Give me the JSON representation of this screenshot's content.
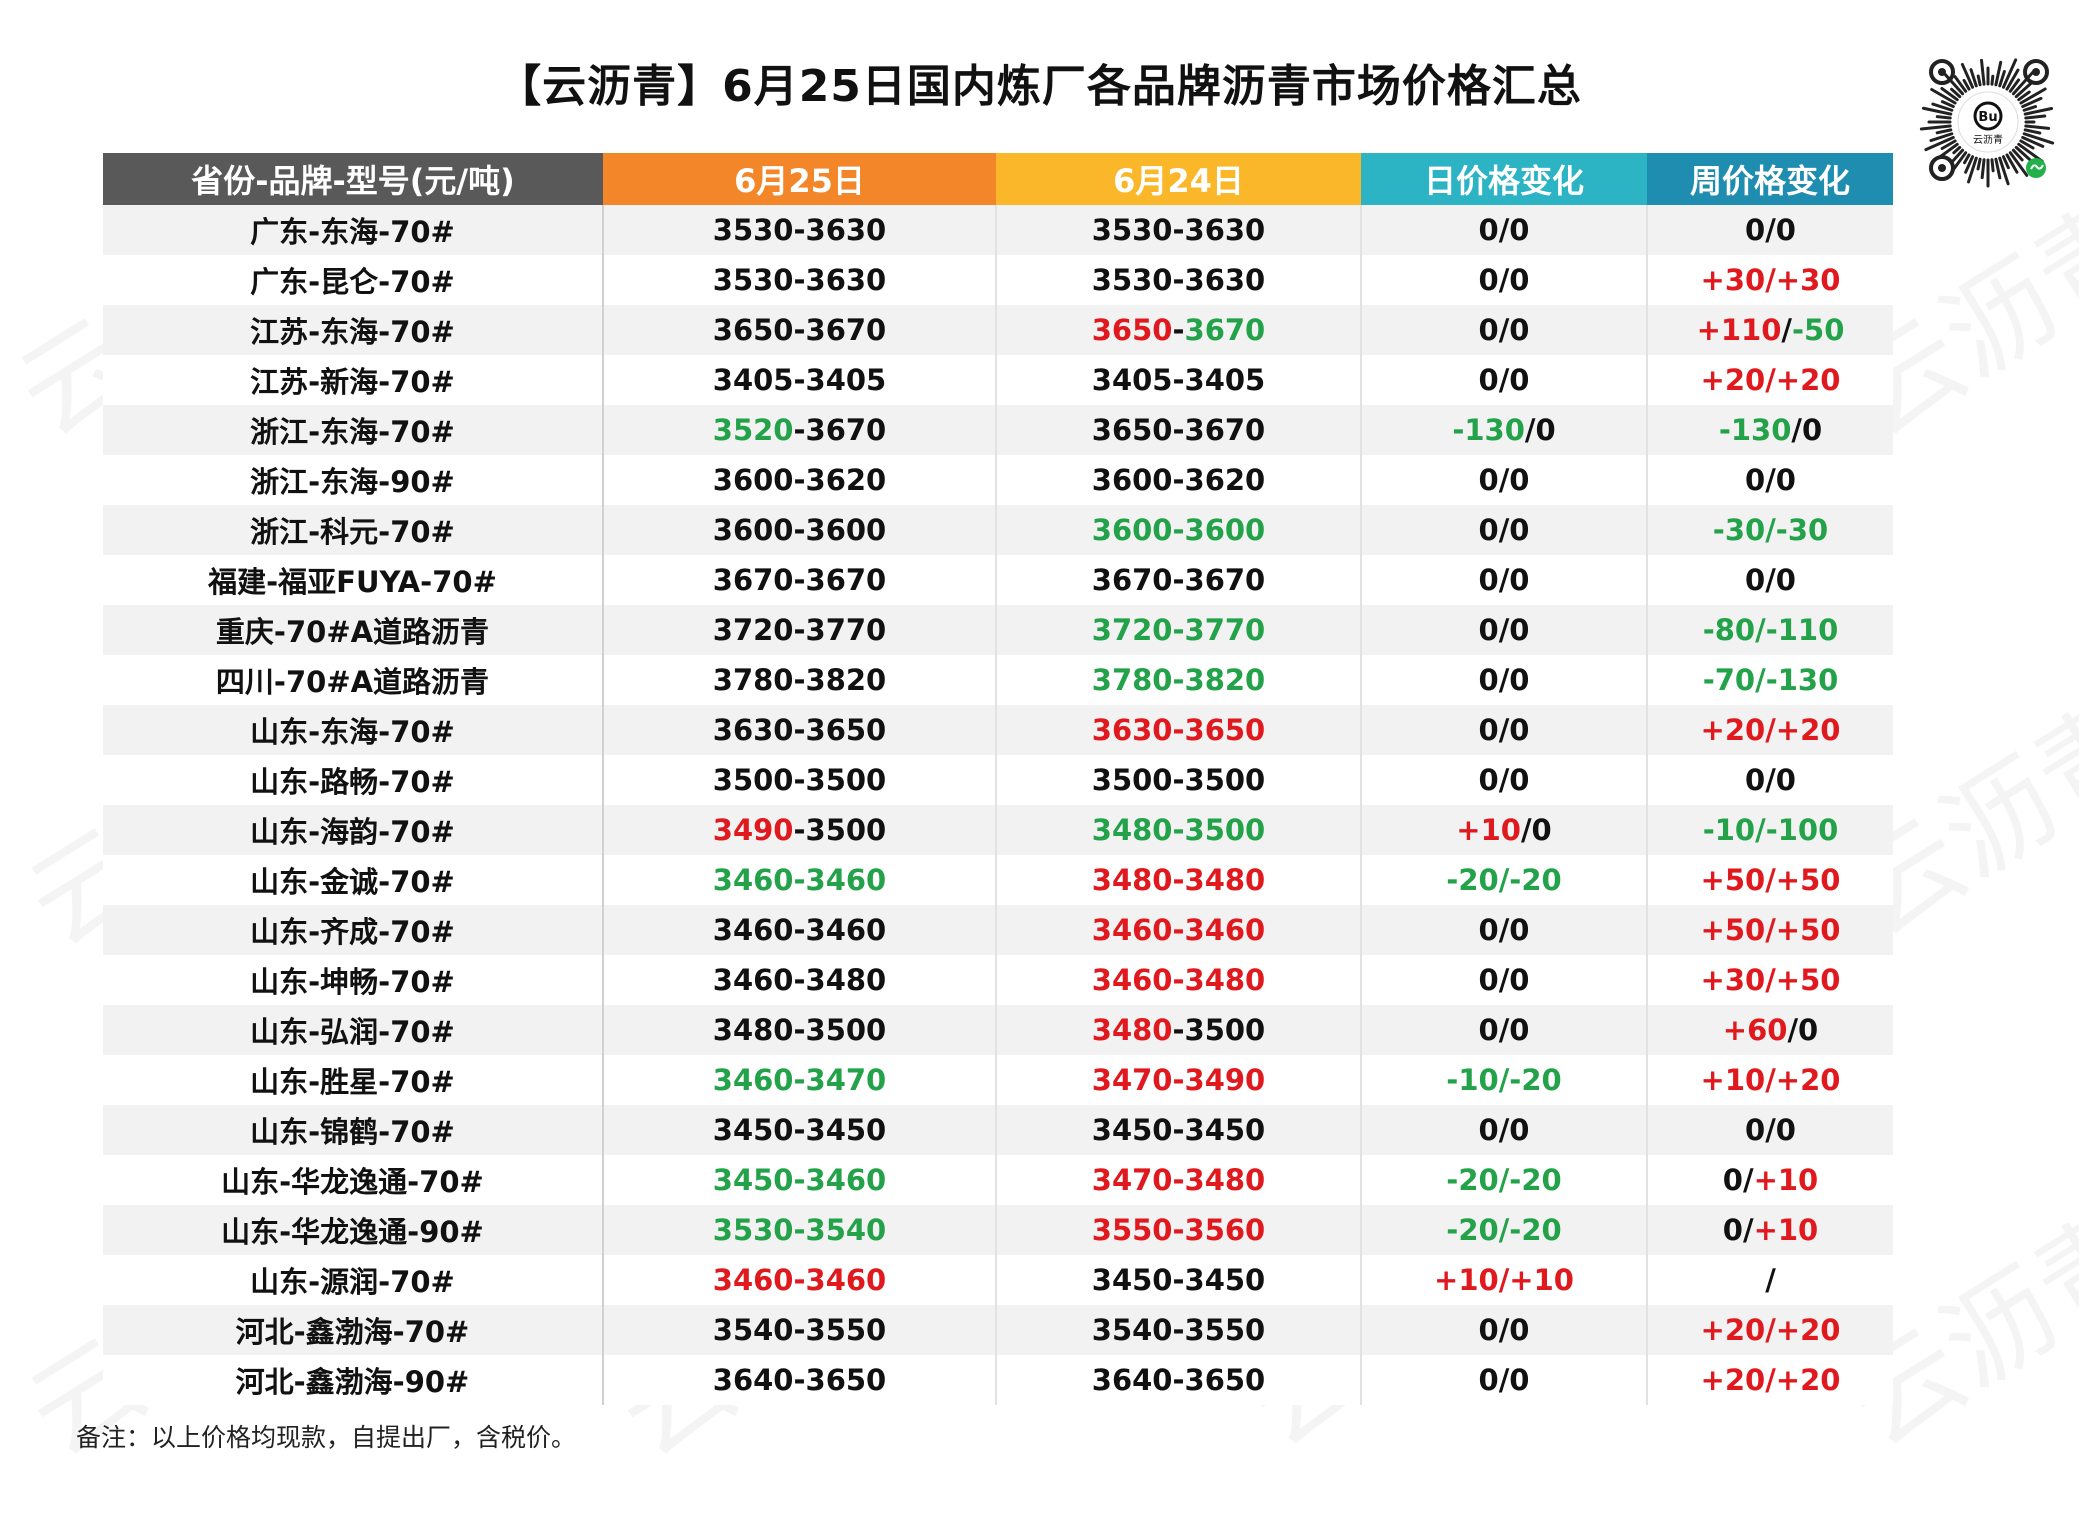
{
  "title": "【云沥青】6月25日国内炼厂各品牌沥青市场价格汇总",
  "qr_label": "云沥青",
  "watermark": "云沥青",
  "colors": {
    "header_col0": "#595959",
    "header_col1": "#f4862a",
    "header_col2": "#fbb72a",
    "header_col3": "#2cb4c4",
    "header_col4": "#1e8db0",
    "red": "#e0191e",
    "green": "#23a24a"
  },
  "table": {
    "headers": [
      "省份-品牌-型号(元/吨)",
      "6月25日",
      "6月24日",
      "日价格变化",
      "周价格变化"
    ],
    "rows": [
      {
        "name": "广东-东海-70#",
        "d25": [
          [
            "3530-3630",
            "k"
          ]
        ],
        "d24": [
          [
            "3530-3630",
            "k"
          ]
        ],
        "day": [
          [
            "0/0",
            "k"
          ]
        ],
        "week": [
          [
            "0/0",
            "k"
          ]
        ]
      },
      {
        "name": "广东-昆仑-70#",
        "d25": [
          [
            "3530-3630",
            "k"
          ]
        ],
        "d24": [
          [
            "3530-3630",
            "k"
          ]
        ],
        "day": [
          [
            "0/0",
            "k"
          ]
        ],
        "week": [
          [
            "+30/+30",
            "r"
          ]
        ]
      },
      {
        "name": "江苏-东海-70#",
        "d25": [
          [
            "3650-3670",
            "k"
          ]
        ],
        "d24": [
          [
            "3650",
            "r"
          ],
          [
            "-",
            "k"
          ],
          [
            "3670",
            "g"
          ]
        ],
        "day": [
          [
            "0/0",
            "k"
          ]
        ],
        "week": [
          [
            "+110",
            "r"
          ],
          [
            "/",
            "k"
          ],
          [
            "-50",
            "g"
          ]
        ]
      },
      {
        "name": "江苏-新海-70#",
        "d25": [
          [
            "3405-3405",
            "k"
          ]
        ],
        "d24": [
          [
            "3405-3405",
            "k"
          ]
        ],
        "day": [
          [
            "0/0",
            "k"
          ]
        ],
        "week": [
          [
            "+20/+20",
            "r"
          ]
        ]
      },
      {
        "name": "浙江-东海-70#",
        "d25": [
          [
            "3520",
            "g"
          ],
          [
            "-3670",
            "k"
          ]
        ],
        "d24": [
          [
            "3650-3670",
            "k"
          ]
        ],
        "day": [
          [
            "-130",
            "g"
          ],
          [
            "/0",
            "k"
          ]
        ],
        "week": [
          [
            "-130",
            "g"
          ],
          [
            "/0",
            "k"
          ]
        ]
      },
      {
        "name": "浙江-东海-90#",
        "d25": [
          [
            "3600-3620",
            "k"
          ]
        ],
        "d24": [
          [
            "3600-3620",
            "k"
          ]
        ],
        "day": [
          [
            "0/0",
            "k"
          ]
        ],
        "week": [
          [
            "0/0",
            "k"
          ]
        ]
      },
      {
        "name": "浙江-科元-70#",
        "d25": [
          [
            "3600-3600",
            "k"
          ]
        ],
        "d24": [
          [
            "3600-3600",
            "g"
          ]
        ],
        "day": [
          [
            "0/0",
            "k"
          ]
        ],
        "week": [
          [
            "-30/-30",
            "g"
          ]
        ]
      },
      {
        "name": "福建-福亚FUYA-70#",
        "d25": [
          [
            "3670-3670",
            "k"
          ]
        ],
        "d24": [
          [
            "3670-3670",
            "k"
          ]
        ],
        "day": [
          [
            "0/0",
            "k"
          ]
        ],
        "week": [
          [
            "0/0",
            "k"
          ]
        ]
      },
      {
        "name": "重庆-70#A道路沥青",
        "d25": [
          [
            "3720-3770",
            "k"
          ]
        ],
        "d24": [
          [
            "3720-3770",
            "g"
          ]
        ],
        "day": [
          [
            "0/0",
            "k"
          ]
        ],
        "week": [
          [
            "-80/-110",
            "g"
          ]
        ]
      },
      {
        "name": "四川-70#A道路沥青",
        "d25": [
          [
            "3780-3820",
            "k"
          ]
        ],
        "d24": [
          [
            "3780-3820",
            "g"
          ]
        ],
        "day": [
          [
            "0/0",
            "k"
          ]
        ],
        "week": [
          [
            "-70/-130",
            "g"
          ]
        ]
      },
      {
        "name": "山东-东海-70#",
        "d25": [
          [
            "3630-3650",
            "k"
          ]
        ],
        "d24": [
          [
            "3630-3650",
            "r"
          ]
        ],
        "day": [
          [
            "0/0",
            "k"
          ]
        ],
        "week": [
          [
            "+20/+20",
            "r"
          ]
        ]
      },
      {
        "name": "山东-路畅-70#",
        "d25": [
          [
            "3500-3500",
            "k"
          ]
        ],
        "d24": [
          [
            "3500-3500",
            "k"
          ]
        ],
        "day": [
          [
            "0/0",
            "k"
          ]
        ],
        "week": [
          [
            "0/0",
            "k"
          ]
        ]
      },
      {
        "name": "山东-海韵-70#",
        "d25": [
          [
            "3490",
            "r"
          ],
          [
            "-3500",
            "k"
          ]
        ],
        "d24": [
          [
            "3480-3500",
            "g"
          ]
        ],
        "day": [
          [
            "+10",
            "r"
          ],
          [
            "/0",
            "k"
          ]
        ],
        "week": [
          [
            "-10/-100",
            "g"
          ]
        ]
      },
      {
        "name": "山东-金诚-70#",
        "d25": [
          [
            "3460-3460",
            "g"
          ]
        ],
        "d24": [
          [
            "3480-3480",
            "r"
          ]
        ],
        "day": [
          [
            "-20/-20",
            "g"
          ]
        ],
        "week": [
          [
            "+50/+50",
            "r"
          ]
        ]
      },
      {
        "name": "山东-齐成-70#",
        "d25": [
          [
            "3460-3460",
            "k"
          ]
        ],
        "d24": [
          [
            "3460-3460",
            "r"
          ]
        ],
        "day": [
          [
            "0/0",
            "k"
          ]
        ],
        "week": [
          [
            "+50/+50",
            "r"
          ]
        ]
      },
      {
        "name": "山东-坤畅-70#",
        "d25": [
          [
            "3460-3480",
            "k"
          ]
        ],
        "d24": [
          [
            "3460-3480",
            "r"
          ]
        ],
        "day": [
          [
            "0/0",
            "k"
          ]
        ],
        "week": [
          [
            "+30/+50",
            "r"
          ]
        ]
      },
      {
        "name": "山东-弘润-70#",
        "d25": [
          [
            "3480-3500",
            "k"
          ]
        ],
        "d24": [
          [
            "3480",
            "r"
          ],
          [
            "-3500",
            "k"
          ]
        ],
        "day": [
          [
            "0/0",
            "k"
          ]
        ],
        "week": [
          [
            "+60",
            "r"
          ],
          [
            "/0",
            "k"
          ]
        ]
      },
      {
        "name": "山东-胜星-70#",
        "d25": [
          [
            "3460-3470",
            "g"
          ]
        ],
        "d24": [
          [
            "3470-3490",
            "r"
          ]
        ],
        "day": [
          [
            "-10/-20",
            "g"
          ]
        ],
        "week": [
          [
            "+10/+20",
            "r"
          ]
        ]
      },
      {
        "name": "山东-锦鹤-70#",
        "d25": [
          [
            "3450-3450",
            "k"
          ]
        ],
        "d24": [
          [
            "3450-3450",
            "k"
          ]
        ],
        "day": [
          [
            "0/0",
            "k"
          ]
        ],
        "week": [
          [
            "0/0",
            "k"
          ]
        ]
      },
      {
        "name": "山东-华龙逸通-70#",
        "d25": [
          [
            "3450-3460",
            "g"
          ]
        ],
        "d24": [
          [
            "3470-3480",
            "r"
          ]
        ],
        "day": [
          [
            "-20/-20",
            "g"
          ]
        ],
        "week": [
          [
            "0/",
            "k"
          ],
          [
            "+10",
            "r"
          ]
        ]
      },
      {
        "name": "山东-华龙逸通-90#",
        "d25": [
          [
            "3530-3540",
            "g"
          ]
        ],
        "d24": [
          [
            "3550-3560",
            "r"
          ]
        ],
        "day": [
          [
            "-20/-20",
            "g"
          ]
        ],
        "week": [
          [
            "0/",
            "k"
          ],
          [
            "+10",
            "r"
          ]
        ]
      },
      {
        "name": "山东-源润-70#",
        "d25": [
          [
            "3460-3460",
            "r"
          ]
        ],
        "d24": [
          [
            "3450-3450",
            "k"
          ]
        ],
        "day": [
          [
            "+10/+10",
            "r"
          ]
        ],
        "week": [
          [
            "/",
            "k"
          ]
        ]
      },
      {
        "name": "河北-鑫渤海-70#",
        "d25": [
          [
            "3540-3550",
            "k"
          ]
        ],
        "d24": [
          [
            "3540-3550",
            "k"
          ]
        ],
        "day": [
          [
            "0/0",
            "k"
          ]
        ],
        "week": [
          [
            "+20/+20",
            "r"
          ]
        ]
      },
      {
        "name": "河北-鑫渤海-90#",
        "d25": [
          [
            "3640-3650",
            "k"
          ]
        ],
        "d24": [
          [
            "3640-3650",
            "k"
          ]
        ],
        "day": [
          [
            "0/0",
            "k"
          ]
        ],
        "week": [
          [
            "+20/+20",
            "r"
          ]
        ]
      }
    ]
  },
  "note": "备注：以上价格均现款，自提出厂，含税价。"
}
